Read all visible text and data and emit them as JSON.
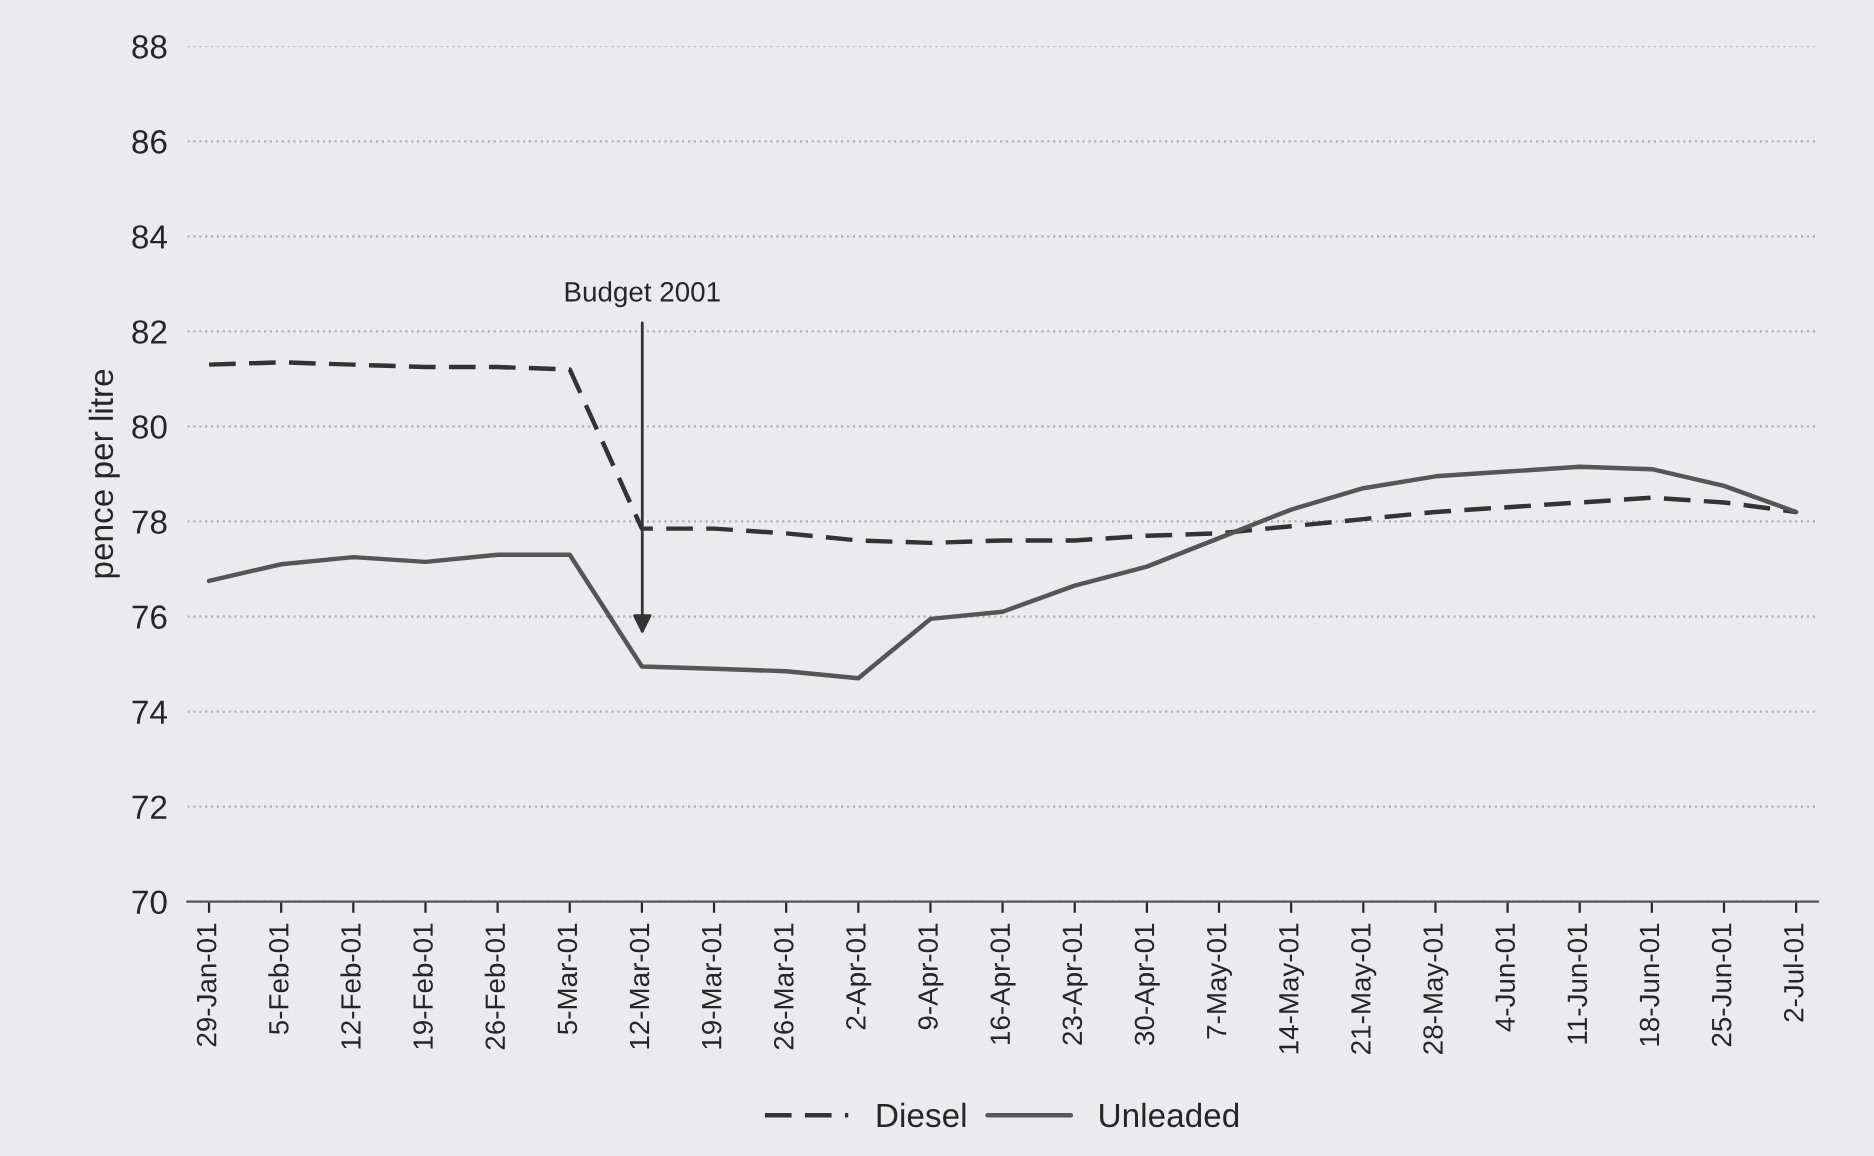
{
  "chart_data": {
    "type": "line",
    "ylabel": "pence per litre",
    "categories": [
      "29-Jan-01",
      "5-Feb-01",
      "12-Feb-01",
      "19-Feb-01",
      "26-Feb-01",
      "5-Mar-01",
      "12-Mar-01",
      "19-Mar-01",
      "26-Mar-01",
      "2-Apr-01",
      "9-Apr-01",
      "16-Apr-01",
      "23-Apr-01",
      "30-Apr-01",
      "7-May-01",
      "14-May-01",
      "21-May-01",
      "28-May-01",
      "4-Jun-01",
      "11-Jun-01",
      "18-Jun-01",
      "25-Jun-01",
      "2-Jul-01"
    ],
    "series": [
      {
        "name": "Diesel",
        "color": "#333333",
        "line_style": "dashed",
        "values": [
          81.3,
          81.35,
          81.3,
          81.25,
          81.25,
          81.2,
          77.85,
          77.85,
          77.75,
          77.6,
          77.55,
          77.6,
          77.6,
          77.7,
          77.75,
          77.9,
          78.05,
          78.2,
          78.3,
          78.4,
          78.5,
          78.4,
          78.2
        ]
      },
      {
        "name": "Unleaded",
        "color": "#555555",
        "line_style": "solid",
        "values": [
          76.75,
          77.1,
          77.25,
          77.15,
          77.3,
          77.3,
          74.95,
          74.9,
          74.85,
          74.7,
          75.95,
          76.1,
          76.65,
          77.05,
          77.65,
          78.25,
          78.7,
          78.95,
          79.05,
          79.15,
          79.1,
          78.75,
          78.2
        ]
      }
    ],
    "ylim": [
      70,
      88
    ],
    "yticks": [
      70,
      72,
      74,
      76,
      78,
      80,
      82,
      84,
      86,
      88
    ],
    "grid": "y",
    "legend": "bottom",
    "marker": "none",
    "annotations": [
      "Budget 2001"
    ]
  }
}
